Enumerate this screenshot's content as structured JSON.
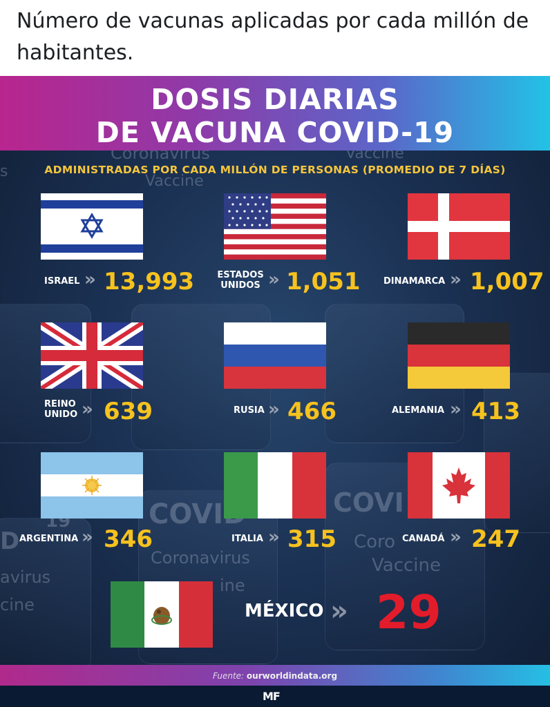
{
  "post": {
    "caption": "Número de vacunas aplicadas por cada millón de habitantes."
  },
  "infographic": {
    "title_line1": "DOSIS DIARIAS",
    "title_line2": "DE VACUNA COVID-19",
    "subtitle": "ADMINISTRADAS POR CADA MILLÓN DE PERSONAS (PROMEDIO DE 7 DÍAS)",
    "background_text": {
      "coronavirus": "Coronavirus",
      "vaccine": "Vaccine",
      "covid": "COVID",
      "covi": "COVI",
      "corona": "Coro",
      "ine": "ine",
      "avirus": "avirus",
      "cine": "cine",
      "s": "s",
      "d": "D",
      "nineteen": "19",
      "us": "us"
    },
    "chevron": "»",
    "countries": [
      {
        "name": "ISRAEL",
        "value": "13,993",
        "flag_icon": "israel-flag-icon"
      },
      {
        "name_line1": "ESTADOS",
        "name_line2": "UNIDOS",
        "value": "1,051",
        "flag_icon": "usa-flag-icon"
      },
      {
        "name": "DINAMARCA",
        "value": "1,007",
        "flag_icon": "denmark-flag-icon"
      },
      {
        "name_line1": "REINO",
        "name_line2": "UNIDO",
        "value": "639",
        "flag_icon": "uk-flag-icon"
      },
      {
        "name": "RUSIA",
        "value": "466",
        "flag_icon": "russia-flag-icon"
      },
      {
        "name": "ALEMANIA",
        "value": "413",
        "flag_icon": "germany-flag-icon"
      },
      {
        "name": "ARGENTINA",
        "value": "346",
        "flag_icon": "argentina-flag-icon"
      },
      {
        "name": "ITALIA",
        "value": "315",
        "flag_icon": "italy-flag-icon"
      },
      {
        "name": "CANADÁ",
        "value": "247",
        "flag_icon": "canada-flag-icon"
      }
    ],
    "mexico": {
      "name": "MÉXICO",
      "value": "29",
      "flag_icon": "mexico-flag-icon"
    },
    "source_key": "Fuente:",
    "source_value": "ourworldindata.org",
    "logo": "MF",
    "colors": {
      "value_yellow": "#f6c21e",
      "mexico_red": "#e21c2a",
      "subtitle_yellow": "#f4c53d",
      "header_magenta": "#b9258e",
      "header_cyan": "#22c2e6"
    }
  }
}
